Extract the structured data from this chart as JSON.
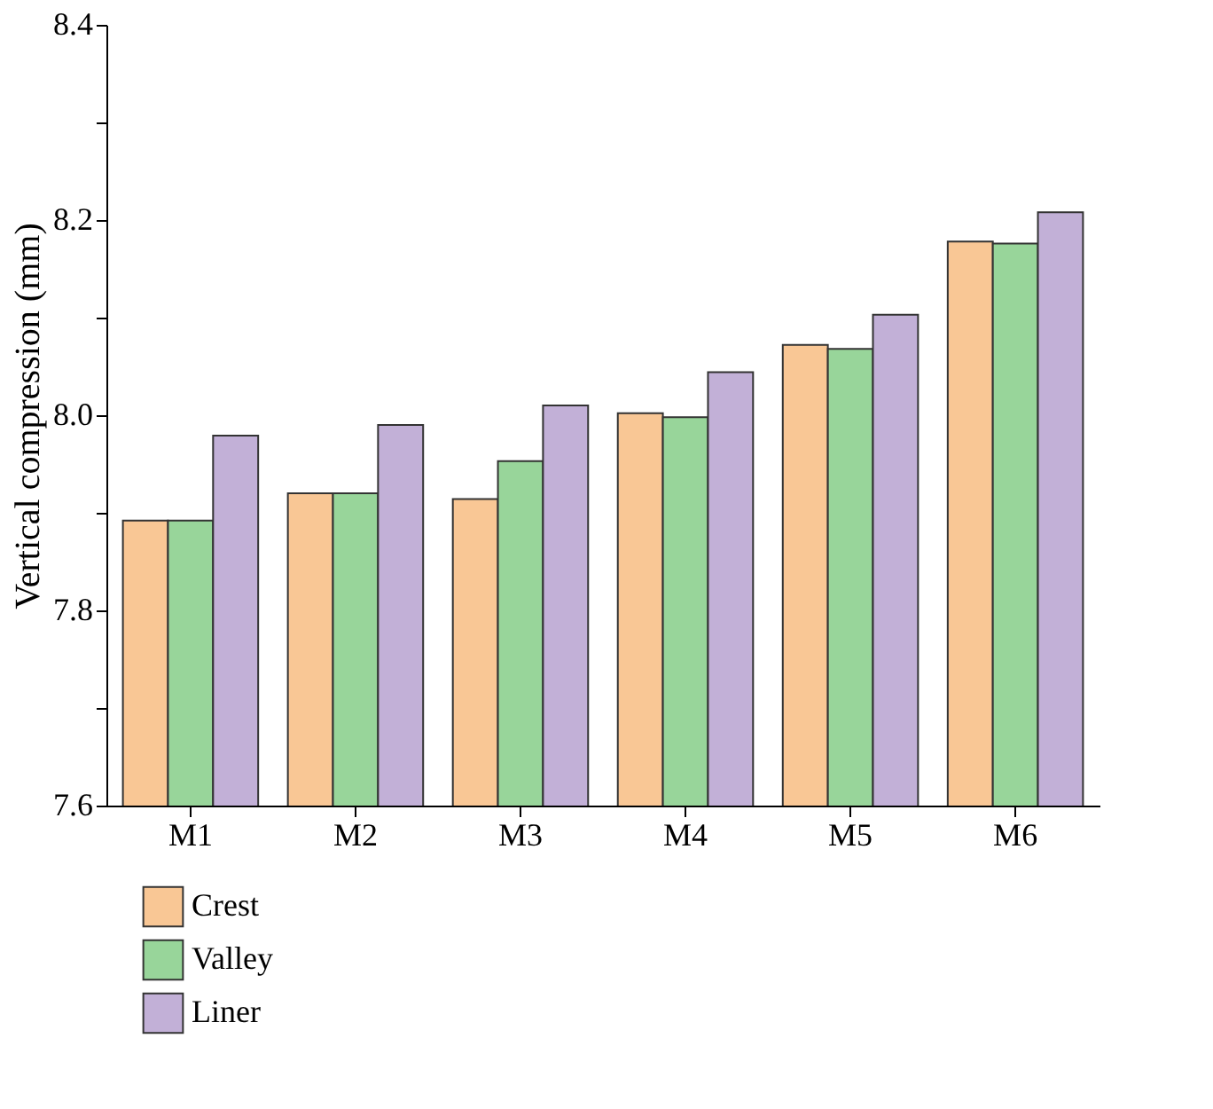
{
  "chart_data": {
    "type": "bar",
    "ylabel": "Vertical compression (mm)",
    "categories": [
      "M1",
      "M2",
      "M3",
      "M4",
      "M5",
      "M6"
    ],
    "series": [
      {
        "name": "Crest",
        "color": "#f9c795",
        "values": [
          7.892,
          7.92,
          7.914,
          8.002,
          8.072,
          8.178
        ]
      },
      {
        "name": "Valley",
        "color": "#98d59a",
        "values": [
          7.892,
          7.92,
          7.953,
          7.998,
          8.068,
          8.176
        ]
      },
      {
        "name": "Liner",
        "color": "#c2b0d7",
        "values": [
          7.979,
          7.99,
          8.01,
          8.044,
          8.103,
          8.208
        ]
      }
    ],
    "ylim": [
      7.6,
      8.4
    ],
    "yticks": [
      7.6,
      {
        "value": 7.7,
        "label": null
      },
      7.8,
      {
        "value": 7.9,
        "label": null
      },
      {
        "value": 8.0,
        "label": "8.0"
      },
      {
        "value": 8.1,
        "label": null
      },
      8.2,
      {
        "value": 8.3,
        "label": null
      },
      8.4
    ],
    "grid": false,
    "legend": "bottom left"
  }
}
